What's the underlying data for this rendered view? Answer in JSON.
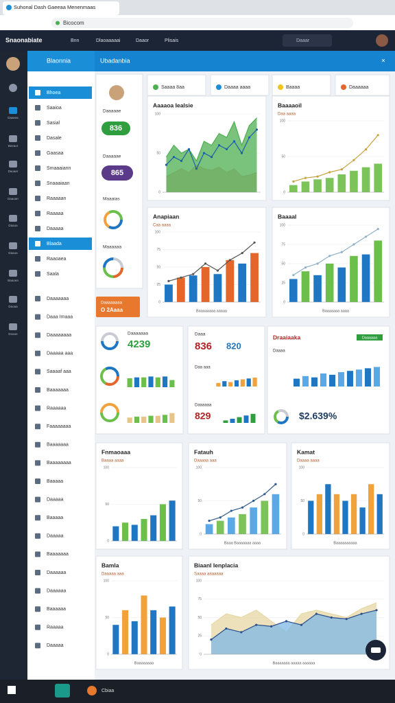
{
  "browser": {
    "tab_title": "Suhonal Dash Gaeeaa Menenmaas",
    "address": "Bicocom"
  },
  "topbar": {
    "brand": "Snaonabiate",
    "menu": [
      "Bnn",
      "Dlaoaaaaai",
      "Daaor",
      "Plisais"
    ],
    "search": "Daaar"
  },
  "rail": [
    "Daaeas",
    "Beeaor",
    "Daoaer",
    "Daaoan",
    "Daaoa",
    "Daaoa",
    "Baaoea",
    "Daoaa",
    "Doaoe"
  ],
  "sidebar": {
    "title": "Blaonnia",
    "active_items": [
      0,
      10
    ],
    "items": [
      "Bhoea",
      "Saaioa",
      "Sasial",
      "Dasale",
      "Gaasaa",
      "Smaaaiann",
      "Snaaaiaan",
      "Raaaaan",
      "Raaaaa",
      "Daaaaa",
      "Blaada",
      "Raaoaea",
      "Saala",
      "Daaaaaaa",
      "Daaa Imaaa",
      "Daaaaaaaa",
      "Daaaaa aaa",
      "Saaaaf aaa",
      "Baaaaaaa",
      "Raaaaaa",
      "Faaaaaaaa",
      "Baaaaaaa",
      "Baaaaaaaa",
      "Baaaaa",
      "Daaaaa",
      "Baaaaa",
      "Daaaaa",
      "Baaaaaaa",
      "Daaaaaa",
      "Daaaaaa",
      "Baaaaaa",
      "Raaaaa",
      "Daaaaa"
    ]
  },
  "header": {
    "title": "Ubadanbia"
  },
  "summary_cards": [
    "Saaaa 8aa",
    "Daaaa aaaa",
    "Baaaa",
    "Daaaaaa"
  ],
  "profile": {
    "label1": "Daaaaae",
    "value1": 836,
    "label2": "Daaaaae",
    "value2": 865,
    "label3": "Maaaias",
    "label4": "Maaaaaa",
    "button": "Daaaaaaaa",
    "button_value": "O 2Aaaa"
  },
  "kpi_cards": [
    {
      "title": "Daaaaaaa",
      "value": 4239,
      "rows": [
        {
          "bars": [
            50,
            55,
            55,
            60,
            55,
            60,
            40
          ]
        },
        {
          "bars": [
            30,
            35,
            35,
            40,
            40,
            45,
            55
          ]
        }
      ]
    },
    {
      "title": "Daaa",
      "value": 836,
      "value2": 820,
      "rows": [
        {
          "label": "Daa aaa",
          "bars": [
            20,
            30,
            25,
            35,
            40,
            45,
            50
          ]
        },
        {
          "label": "Daaaaaa",
          "value": 829,
          "bars": [
            15,
            25,
            35,
            45,
            55
          ]
        }
      ]
    },
    {
      "title": "Draaiaaka",
      "badge": "Daaaaaa",
      "subtitle": "Daaaa",
      "rows": [
        {
          "bars": [
            30,
            40,
            35,
            50,
            45,
            55,
            60,
            65,
            70,
            75
          ]
        },
        {
          "value": "$2.639%"
        }
      ]
    }
  ],
  "taskbar": {
    "app": "Cbiaa"
  },
  "chart_data": [
    {
      "type": "area",
      "title": "Aaaaoa Iealsie",
      "ylim": [
        0,
        100
      ],
      "yticks": [
        0,
        50,
        100
      ],
      "series": [
        {
          "color": "#e8a9a0",
          "values": [
            20,
            25,
            30,
            25,
            35,
            30,
            28,
            32,
            25,
            30,
            20,
            22,
            25
          ]
        },
        {
          "color": "#4caf50",
          "values": [
            45,
            60,
            50,
            55,
            40,
            65,
            60,
            75,
            70,
            90,
            60,
            85,
            95
          ]
        },
        {
          "type": "line",
          "color": "#1e5fa8",
          "values": [
            35,
            45,
            40,
            55,
            30,
            50,
            45,
            60,
            55,
            65,
            50,
            70,
            80
          ]
        }
      ]
    },
    {
      "type": "bar",
      "title": "Baaaaoil",
      "subtitle": "Daa aaaa",
      "ylim": [
        0,
        100
      ],
      "yticks": [
        0,
        50,
        100
      ],
      "series": [
        {
          "color": "#7cc35a",
          "values": [
            10,
            15,
            18,
            20,
            25,
            30,
            35,
            40
          ]
        },
        {
          "type": "line",
          "color": "#c8a23c",
          "values": [
            15,
            20,
            22,
            28,
            32,
            45,
            60,
            80
          ]
        }
      ]
    },
    {
      "type": "bar",
      "title": "Anapiaan",
      "subtitle": "Caa aaaa",
      "caption": "Baaaaaaaa aaaaa",
      "ylim": [
        0,
        100
      ],
      "yticks": [
        0,
        25,
        50,
        75,
        100
      ],
      "series": [
        {
          "colors": [
            "#1f77c4",
            "#e4662a"
          ],
          "values": [
            25,
            35,
            38,
            50,
            40,
            60,
            55,
            70
          ]
        },
        {
          "type": "line",
          "color": "#555555",
          "values": [
            30,
            35,
            40,
            55,
            45,
            60,
            70,
            85
          ]
        }
      ]
    },
    {
      "type": "bar",
      "title": "Baaaal",
      "caption": "Baaaaaaa aaaa",
      "ylim": [
        0,
        100
      ],
      "yticks": [
        0,
        25,
        50,
        75,
        100
      ],
      "series": [
        {
          "colors": [
            "#1f77c4",
            "#6cbf4a"
          ],
          "values": [
            30,
            40,
            35,
            50,
            45,
            60,
            62,
            80
          ]
        },
        {
          "type": "line",
          "color": "#8fb0c8",
          "values": [
            35,
            45,
            50,
            60,
            65,
            75,
            85,
            95
          ]
        }
      ]
    },
    {
      "type": "bar",
      "title": "Fnmaoaaa",
      "subtitle": "Baaaa aaaa",
      "ylim": [
        0,
        100
      ],
      "yticks": [
        0,
        50,
        100
      ],
      "series": [
        {
          "colors": [
            "#1f77c4",
            "#6cbf4a"
          ],
          "values": [
            20,
            25,
            22,
            30,
            35,
            50,
            55
          ]
        }
      ]
    },
    {
      "type": "bar",
      "title": "Fatauh",
      "subtitle": "Daaaaa aaa",
      "caption": "Baaa Baaaaaaa aaaa",
      "ylim": [
        0,
        100
      ],
      "yticks": [
        0,
        50,
        100
      ],
      "series": [
        {
          "colors": [
            "#5aa9e6",
            "#7cc35a"
          ],
          "values": [
            15,
            20,
            25,
            30,
            40,
            50,
            60
          ]
        },
        {
          "type": "line",
          "color": "#2f5a8a",
          "values": [
            20,
            25,
            35,
            40,
            50,
            60,
            75
          ]
        }
      ]
    },
    {
      "type": "bar",
      "title": "Kamat",
      "subtitle": "Daaaa aaaa",
      "caption": "Baaaaaaaaaa",
      "ylim": [
        0,
        100
      ],
      "yticks": [
        0,
        50,
        100
      ],
      "series": [
        {
          "colors": [
            "#1f77c4",
            "#f0a33c"
          ],
          "values": [
            50,
            60,
            75,
            60,
            50,
            60,
            40,
            75,
            60
          ]
        }
      ]
    },
    {
      "type": "bar",
      "title": "Bamla",
      "subtitle": "Daaaaa aaa",
      "caption": "Baaaaaaaa",
      "ylim": [
        0,
        100
      ],
      "yticks": [
        0,
        50,
        100
      ],
      "series": [
        {
          "colors": [
            "#1f77c4",
            "#f0a33c"
          ],
          "values": [
            40,
            60,
            45,
            80,
            60,
            50,
            65
          ]
        }
      ]
    },
    {
      "type": "area",
      "title": "Biaanl Ienplacia",
      "subtitle": "Saaaa aaaaaaa",
      "caption": "Baaaaaaa aaaaa aaaaaa",
      "ylim": [
        0,
        100
      ],
      "yticks": [
        0,
        25,
        50,
        75,
        100
      ],
      "series": [
        {
          "color": "#e6d7a3",
          "values": [
            40,
            55,
            50,
            60,
            45,
            30,
            55,
            60,
            55,
            50,
            62,
            70
          ]
        },
        {
          "color": "#7fb8e6",
          "values": [
            20,
            35,
            30,
            40,
            38,
            45,
            40,
            55,
            50,
            48,
            55,
            60
          ]
        },
        {
          "type": "line",
          "color": "#2f4f8a",
          "values": [
            20,
            35,
            30,
            40,
            38,
            45,
            40,
            55,
            50,
            48,
            55,
            60
          ]
        }
      ]
    }
  ]
}
